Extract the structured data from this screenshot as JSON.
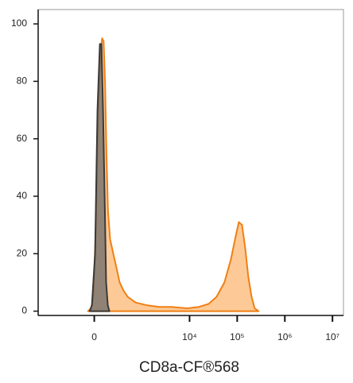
{
  "chart_data": {
    "type": "histogram-overlay",
    "x_label": "CD8a-CF®568",
    "xscale": "biexponential",
    "xlim": [
      -1500,
      17000000
    ],
    "ylim": [
      -1.5,
      105
    ],
    "xticks": [
      0,
      {
        "value": 10000,
        "label": "10⁴"
      },
      {
        "value": 100000,
        "label": "10⁵"
      },
      {
        "value": 1000000,
        "label": "10⁶"
      },
      {
        "value": 10000000,
        "label": "10⁷"
      }
    ],
    "yticks": [
      0,
      20,
      40,
      60,
      80,
      100
    ],
    "series": [
      {
        "color": "#f07f14",
        "fill": "#fdc48c",
        "x": [
          -62,
          -31,
          -7.7,
          15.4,
          38.5,
          62,
          77.6,
          93,
          109,
          125,
          142,
          168,
          211,
          259,
          312,
          392,
          483,
          722,
          1297,
          2310,
          4130,
          8900,
          15840,
          25100,
          36900,
          54000,
          73600,
          92700,
          108000,
          126000,
          147000,
          171000,
          200000,
          232000,
          281000
        ],
        "values": [
          0,
          1,
          5,
          30,
          70,
          90,
          95,
          94,
          80,
          55,
          35,
          25,
          20,
          15,
          10,
          7,
          5,
          3,
          2,
          1.5,
          1.5,
          1,
          1.5,
          2.5,
          5,
          10,
          18,
          26,
          31,
          30,
          22,
          12,
          5,
          1,
          0
        ]
      },
      {
        "color": "#3a3a3a",
        "fill": "#6b6b6b",
        "x": [
          -46,
          -23,
          7.7,
          30.8,
          54.4,
          70.4,
          87,
          104,
          121,
          140,
          159
        ],
        "values": [
          0,
          2,
          20,
          70,
          93,
          93,
          70,
          40,
          10,
          2,
          0
        ]
      }
    ]
  }
}
